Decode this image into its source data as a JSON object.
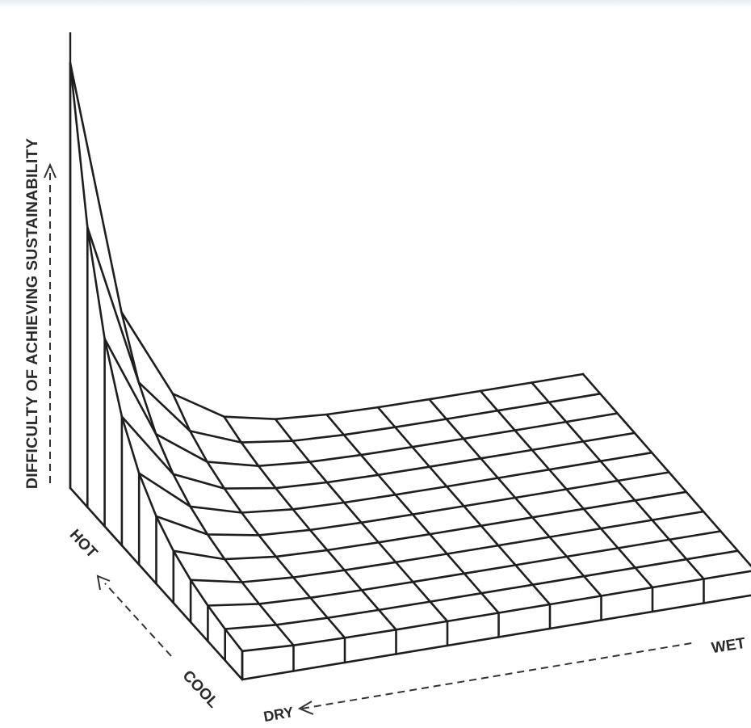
{
  "axis_labels": {
    "vertical": "DIFFICULTY OF ACHIEVING SUSTAINABILITY",
    "temperature_high": "HOT",
    "temperature_low": "COOL",
    "moisture_low": "DRY",
    "moisture_high": "WET"
  },
  "colors": {
    "line": "#1e1e1e",
    "background": "#ffffff"
  }
}
